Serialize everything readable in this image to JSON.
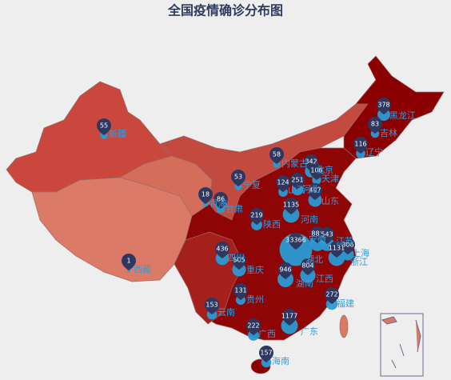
{
  "title": "全国疫情确诊分布图",
  "provinces": [
    {
      "name": "新疆",
      "value": 55
    },
    {
      "name": "西藏",
      "value": 1
    },
    {
      "name": "青海",
      "value": 18
    },
    {
      "name": "甘肃",
      "value": 86
    },
    {
      "name": "宁夏",
      "value": 53
    },
    {
      "name": "内蒙古",
      "value": 58
    },
    {
      "name": "黑龙江",
      "value": 378
    },
    {
      "name": "吉林",
      "value": 83
    },
    {
      "name": "辽宁",
      "value": 116
    },
    {
      "name": "北京",
      "value": 342
    },
    {
      "name": "天津",
      "value": 106
    },
    {
      "name": "河北",
      "value": 251
    },
    {
      "name": "山西",
      "value": 124
    },
    {
      "name": "山东",
      "value": 497
    },
    {
      "name": "河南",
      "value": 1135
    },
    {
      "name": "陕西",
      "value": 219
    },
    {
      "name": "湖北",
      "value": 33366
    },
    {
      "name": "安徽",
      "value": 889
    },
    {
      "name": "江苏",
      "value": 543
    },
    {
      "name": "上海",
      "value": 306
    },
    {
      "name": "浙江",
      "value": 1131
    },
    {
      "name": "四川",
      "value": 436
    },
    {
      "name": "重庆",
      "value": 505
    },
    {
      "name": "贵州",
      "value": 131
    },
    {
      "name": "云南",
      "value": 153
    },
    {
      "name": "广西",
      "value": 222
    },
    {
      "name": "广东",
      "value": 1177
    },
    {
      "name": "海南",
      "value": 157
    },
    {
      "name": "湖南",
      "value": 946
    },
    {
      "name": "江西",
      "value": 804
    },
    {
      "name": "福建",
      "value": 272
    }
  ]
}
